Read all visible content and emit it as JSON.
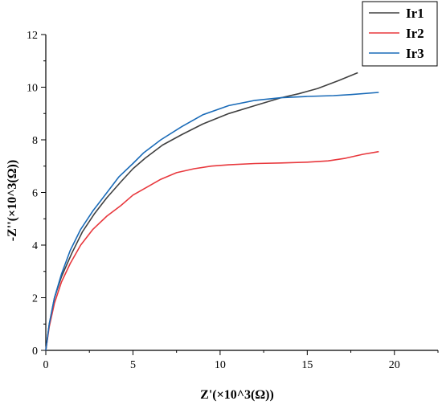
{
  "chart_data": {
    "type": "line",
    "xlabel": "Z'(×10^3(Ω))",
    "ylabel": "-Z''(×10^3(Ω))",
    "xlim": [
      0,
      22.5
    ],
    "ylim": [
      0,
      12
    ],
    "xticks": [
      0,
      5,
      10,
      15,
      20
    ],
    "xticks_minor": [
      2.5,
      7.5,
      12.5,
      17.5,
      22.5
    ],
    "yticks": [
      0,
      2,
      4,
      6,
      8,
      10,
      12
    ],
    "yticks_minor": [
      1,
      3,
      5,
      7,
      9,
      11
    ],
    "grid": false,
    "legend_position": "top-right",
    "series": [
      {
        "name": "Ir1",
        "color": "#404040",
        "points": [
          [
            0,
            0
          ],
          [
            0.2,
            1.0
          ],
          [
            0.5,
            2.0
          ],
          [
            0.9,
            2.8
          ],
          [
            1.5,
            3.7
          ],
          [
            2.1,
            4.5
          ],
          [
            2.8,
            5.2
          ],
          [
            3.5,
            5.8
          ],
          [
            4.3,
            6.4
          ],
          [
            5.0,
            6.9
          ],
          [
            5.7,
            7.3
          ],
          [
            6.7,
            7.8
          ],
          [
            7.8,
            8.2
          ],
          [
            9.0,
            8.6
          ],
          [
            10.5,
            9.0
          ],
          [
            12.0,
            9.3
          ],
          [
            13.5,
            9.6
          ],
          [
            14.5,
            9.75
          ],
          [
            15.6,
            9.95
          ],
          [
            16.8,
            10.25
          ],
          [
            17.9,
            10.55
          ]
        ]
      },
      {
        "name": "Ir2",
        "color": "#e8383d",
        "points": [
          [
            0,
            0
          ],
          [
            0.2,
            0.9
          ],
          [
            0.5,
            1.8
          ],
          [
            0.9,
            2.6
          ],
          [
            1.4,
            3.3
          ],
          [
            2.0,
            4.0
          ],
          [
            2.7,
            4.6
          ],
          [
            3.5,
            5.1
          ],
          [
            4.3,
            5.5
          ],
          [
            5.0,
            5.9
          ],
          [
            5.8,
            6.2
          ],
          [
            6.6,
            6.5
          ],
          [
            7.5,
            6.75
          ],
          [
            8.5,
            6.9
          ],
          [
            9.5,
            7.0
          ],
          [
            10.5,
            7.05
          ],
          [
            12.0,
            7.1
          ],
          [
            13.5,
            7.12
          ],
          [
            15.0,
            7.15
          ],
          [
            16.2,
            7.2
          ],
          [
            17.2,
            7.3
          ],
          [
            18.2,
            7.45
          ],
          [
            19.1,
            7.55
          ]
        ]
      },
      {
        "name": "Ir3",
        "color": "#1a6bb8",
        "points": [
          [
            0,
            0
          ],
          [
            0.2,
            1.0
          ],
          [
            0.5,
            2.0
          ],
          [
            0.9,
            2.9
          ],
          [
            1.4,
            3.8
          ],
          [
            2.0,
            4.6
          ],
          [
            2.7,
            5.3
          ],
          [
            3.4,
            5.9
          ],
          [
            4.2,
            6.6
          ],
          [
            5.0,
            7.1
          ],
          [
            5.6,
            7.5
          ],
          [
            6.6,
            8.0
          ],
          [
            7.8,
            8.5
          ],
          [
            9.0,
            8.95
          ],
          [
            10.5,
            9.3
          ],
          [
            12.0,
            9.5
          ],
          [
            13.5,
            9.6
          ],
          [
            15.0,
            9.65
          ],
          [
            16.5,
            9.68
          ],
          [
            17.5,
            9.72
          ],
          [
            19.1,
            9.8
          ]
        ]
      }
    ]
  }
}
